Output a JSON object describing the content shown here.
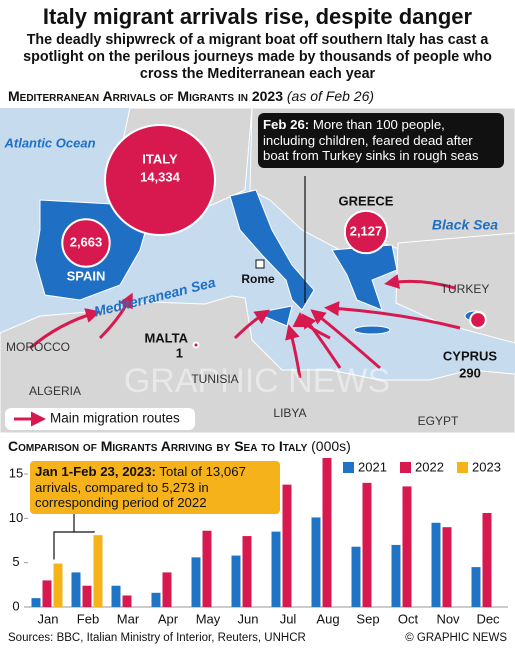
{
  "header": {
    "title": "Italy migrant arrivals rise, despite danger",
    "subtitle": "The deadly shipwreck of a migrant boat off southern Italy has cast a spotlight on the perilous journeys made by thousands of people who cross the Mediterranean each year"
  },
  "map": {
    "title": "Mediterranean Arrivals of Migrants in 2023",
    "note": "(as of Feb 26)",
    "countries": [
      {
        "name": "ITALY",
        "value": 14334,
        "value_label": "14,334"
      },
      {
        "name": "SPAIN",
        "value": 2663,
        "value_label": "2,663"
      },
      {
        "name": "GREECE",
        "value": 2127,
        "value_label": "2,127"
      },
      {
        "name": "MALTA",
        "value": 1,
        "value_label": "1"
      },
      {
        "name": "CYPRUS",
        "value": 290,
        "value_label": "290"
      }
    ],
    "places": [
      "Atlantic Ocean",
      "Mediterranean Sea",
      "Black Sea",
      "Rome",
      "MOROCCO",
      "ALGERIA",
      "TUNISIA",
      "LIBYA",
      "EGYPT",
      "TURKEY"
    ],
    "callout": {
      "bold": "Feb 26:",
      "text": "More than 100 people, including children, feared dead after boat from Turkey sinks in rough seas"
    },
    "legend": "Main migration routes",
    "watermark": "GRAPHIC NEWS"
  },
  "chart_data": {
    "type": "bar",
    "title": "Comparison of Migrants Arriving by Sea to Italy",
    "unit": "(000s)",
    "categories": [
      "Jan",
      "Feb",
      "Mar",
      "Apr",
      "May",
      "Jun",
      "Jul",
      "Aug",
      "Sep",
      "Oct",
      "Nov",
      "Dec"
    ],
    "series": [
      {
        "name": "2021",
        "color": "#1f74c6",
        "values": [
          1.0,
          3.9,
          2.4,
          1.6,
          5.6,
          5.8,
          8.5,
          10.1,
          6.8,
          7.0,
          9.5,
          4.5
        ]
      },
      {
        "name": "2022",
        "color": "#d8194f",
        "values": [
          3.0,
          2.4,
          1.3,
          3.9,
          8.6,
          8.0,
          13.8,
          16.8,
          14.0,
          13.6,
          9.0,
          10.6
        ]
      },
      {
        "name": "2023",
        "color": "#f4b319",
        "values": [
          4.9,
          8.1,
          null,
          null,
          null,
          null,
          null,
          null,
          null,
          null,
          null,
          null
        ]
      }
    ],
    "ylim": [
      0,
      17
    ],
    "yticks": [
      0,
      5,
      10,
      15
    ],
    "grid": false,
    "legend": "top-right",
    "annotation": {
      "bold": "Jan 1-Feb 23, 2023:",
      "text": "Total of 13,067 arrivals, compared to 5,273 in corresponding period of 2022"
    }
  },
  "footer": {
    "sources": "Sources: BBC, Italian Ministry of Interior, Reuters, UNHCR",
    "credit": "© GRAPHIC NEWS"
  }
}
